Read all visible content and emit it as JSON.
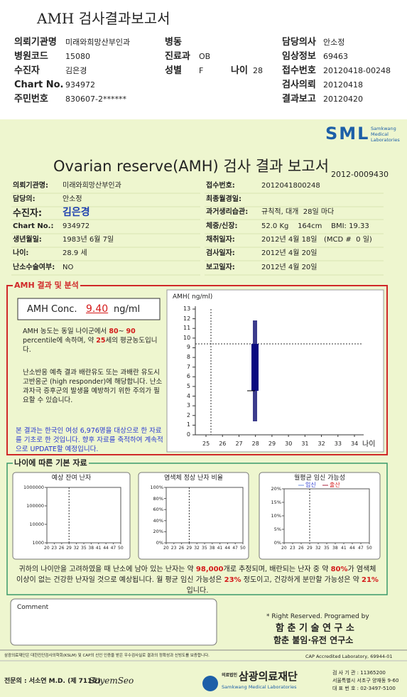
{
  "header": {
    "title": "AMH 검사결과보고서",
    "fields": [
      {
        "label": "의뢰기관명",
        "value": "미래와희망산부인과"
      },
      {
        "label": "병동"
      },
      {
        "label": "담당의사",
        "value": "안소정"
      },
      {
        "label": "병원코드",
        "value": "15080"
      },
      {
        "label": "진료과",
        "value": "OB"
      },
      {
        "label": "임상정보",
        "value": "69463"
      },
      {
        "label": "수진자",
        "value": "김은경"
      },
      {
        "label": "성별",
        "value": "F"
      },
      {
        "label": "나이",
        "value": "28"
      },
      {
        "label": "접수번호",
        "value": "20120418-00248"
      },
      {
        "label": "Chart No.",
        "value": "934972"
      },
      {
        "label": "검사의뢰",
        "value": "20120418"
      },
      {
        "label": "주민번호",
        "value": "830607-2******"
      },
      {
        "label": "결과보고",
        "value": "20120420"
      }
    ]
  },
  "report": {
    "logo": "SML",
    "logo_sub": [
      "Samkwang",
      "Medical",
      "Laboratories"
    ],
    "title": "Ovarian reserve(AMH) 검사 결과 보고서",
    "number": "2012-0009430",
    "left": [
      {
        "label": "의뢰기관명:",
        "value": "미래와희망산부인과"
      },
      {
        "label": "담당의:",
        "value": "안소정"
      },
      {
        "label": "수진자:",
        "value": "김은경"
      },
      {
        "label": "Chart No.:",
        "value": "934972"
      },
      {
        "label": "생년월일:",
        "value": "1983년 6월 7일"
      },
      {
        "label": "나이:",
        "value": "28.9 세"
      },
      {
        "label": "난소수술여부:",
        "value": "NO"
      }
    ],
    "right": [
      {
        "label": "접수번호:",
        "value": "2012041800248"
      },
      {
        "label": "최종월경일:"
      },
      {
        "label": "과거생리습관:",
        "value": "규칙적, 대개  28일 마다"
      },
      {
        "label": "체중/신장:",
        "value": "52.0 Kg    164cm    BMI: 19.33"
      },
      {
        "label": "채취일자:",
        "value": "2012년 4월 18일   (MCD #  0 일)"
      },
      {
        "label": "검사일자:",
        "value": "2012년 4월 20일"
      },
      {
        "label": "보고일자:",
        "value": "2012년 4월 20일"
      }
    ]
  },
  "amh": {
    "title": "AMH 결과 및 분석",
    "conc_label": "AMH Conc.",
    "conc_value": "9.40",
    "unit": "ng/ml",
    "summary": [
      "AMH 농도는 동일 나이군에서 ",
      "80",
      "~ ",
      "90",
      " percentile에 속하며, 약 ",
      "25",
      "세의 평균농도입니다."
    ],
    "risk": "난소반응 예측 결과 배란유도 또는 과배란 유도시 고반응군 (high responder)에 해당합니다. 난소과자극 증후군의 발생을 예방하기 위한 주의가 필요할 수 있습니다.",
    "note": "본 결과는 한국인 여성 6,976명을 대상으로 한 자료를 기초로 한 것입니다. 향후 자료를 축적하여 계속적으로 UPDATE할 예정입니다.",
    "chart": {
      "y_label": "AMH( ng/ml)",
      "x_label": "나이",
      "yticks": [
        0,
        1,
        2,
        3,
        4,
        5,
        6,
        7,
        8,
        9,
        10,
        11,
        12,
        13
      ],
      "xticks": [
        25,
        26,
        27,
        28,
        29,
        30,
        31,
        32,
        33,
        34
      ]
    }
  },
  "age": {
    "title": "나이에 따른 기본 자료",
    "charts": [
      {
        "title": "예상 잔여 난자",
        "yticks": [
          1000000,
          100000,
          10000,
          1000
        ],
        "xticks": [
          20,
          23,
          26,
          29,
          32,
          35,
          38,
          41,
          44,
          47,
          50
        ]
      },
      {
        "title": "염색체 정상 난자 비율",
        "yticks": [
          "100%",
          "80%",
          "60%",
          "40%",
          "20%",
          "0%"
        ],
        "xticks": [
          20,
          23,
          26,
          29,
          32,
          35,
          38,
          41,
          44,
          47,
          50
        ]
      },
      {
        "title": "월평균 임신 가능성",
        "legend": [
          "임신",
          "출산"
        ],
        "yticks": [
          "20%",
          "15%",
          "10%",
          "5%",
          "0%"
        ],
        "xticks": [
          20,
          23,
          26,
          29,
          32,
          35,
          38,
          41,
          44,
          47,
          50
        ]
      }
    ],
    "text": [
      "귀하의 나이만을 고려하였을 때 난소에 남아 있는 난자는 약 ",
      "98,000",
      "개로 추정되며, 배란되는 난자 중 약 ",
      "80%",
      "가 염색체이상이 없는 건강한 난자일 것으로 예상됩니다. 월 평균 임신 가능성은 ",
      "23%",
      " 정도이고, 건강하게 분만할 가능성은 약 ",
      "21%",
      "입니다."
    ]
  },
  "comment": "Comment",
  "credits": [
    "* Right Reserved. Programed by",
    "함 춘 기 술 연 구 소",
    "함춘 불임·유전 연구소"
  ],
  "footer": {
    "notice": "삼광의료재단은 대한진단검사의학회(KSLM) 및 CAP의 신인 인증을 받은 우수검사실로 결과의 정확성과 신빙도를 보증합니다.",
    "cap": "CAP Accredited Laboratory, 69944-01",
    "doctor": "전문의 : 서소연 M.D. (제 711호)",
    "signature": "SoyemSeo",
    "org_prefix": "의료법인",
    "org": "삼광의료재단",
    "org_en": "Samkwang Medical Laboratories",
    "address": [
      "검 사 기 관 : 11365200",
      "서울특별시 서초구 양재동 9-60",
      "대 표 번 호 : 02-3497-5100"
    ]
  }
}
